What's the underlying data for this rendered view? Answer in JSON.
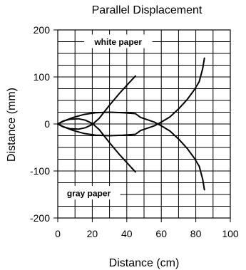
{
  "chart_data": {
    "type": "line",
    "title": "Parallel Displacement",
    "xlabel": "Distance (cm)",
    "ylabel": "Distance (mm)",
    "xlim": [
      0,
      100
    ],
    "ylim": [
      -200,
      200
    ],
    "xticks": [
      0,
      20,
      40,
      60,
      80,
      100
    ],
    "yticks": [
      200,
      100,
      0,
      -100,
      -200
    ],
    "ytick_labels": [
      "200",
      "100",
      "0",
      "-100",
      "-200"
    ],
    "grid": true,
    "grid_x_step": 10,
    "grid_y_step": 25,
    "annotations": [
      {
        "text": "white paper",
        "x": 35,
        "y": 175
      },
      {
        "text": "gray paper",
        "x": 18,
        "y": -147
      }
    ],
    "series": [
      {
        "points": [
          [
            0,
            0
          ],
          [
            3,
            6
          ],
          [
            7,
            10
          ],
          [
            12,
            11
          ],
          [
            16,
            8
          ],
          [
            20,
            1
          ],
          [
            24,
            -12
          ],
          [
            30,
            -40
          ],
          [
            36,
            -66
          ],
          [
            42,
            -90
          ],
          [
            45,
            -102
          ]
        ]
      },
      {
        "points": [
          [
            0,
            0
          ],
          [
            3,
            -6
          ],
          [
            7,
            -10
          ],
          [
            12,
            -11
          ],
          [
            16,
            -8
          ],
          [
            20,
            -1
          ],
          [
            24,
            12
          ],
          [
            30,
            40
          ],
          [
            36,
            66
          ],
          [
            42,
            90
          ],
          [
            45,
            102
          ]
        ]
      },
      {
        "points": [
          [
            0,
            0
          ],
          [
            4,
            7
          ],
          [
            9,
            14
          ],
          [
            15,
            20
          ],
          [
            22,
            24
          ],
          [
            30,
            25
          ],
          [
            38,
            24
          ],
          [
            45,
            22
          ],
          [
            48,
            14
          ],
          [
            52,
            9
          ],
          [
            56,
            4
          ],
          [
            60,
            -4
          ],
          [
            65,
            -15
          ],
          [
            70,
            -32
          ],
          [
            75,
            -52
          ],
          [
            79,
            -72
          ],
          [
            82,
            -90
          ],
          [
            84,
            -118
          ],
          [
            85,
            -140
          ]
        ]
      },
      {
        "points": [
          [
            0,
            0
          ],
          [
            4,
            -7
          ],
          [
            9,
            -14
          ],
          [
            15,
            -20
          ],
          [
            22,
            -24
          ],
          [
            30,
            -25
          ],
          [
            38,
            -24
          ],
          [
            45,
            -22
          ],
          [
            48,
            -14
          ],
          [
            52,
            -9
          ],
          [
            56,
            -4
          ],
          [
            60,
            4
          ],
          [
            65,
            15
          ],
          [
            70,
            32
          ],
          [
            75,
            52
          ],
          [
            79,
            72
          ],
          [
            82,
            90
          ],
          [
            84,
            118
          ],
          [
            85,
            140
          ]
        ]
      }
    ]
  }
}
